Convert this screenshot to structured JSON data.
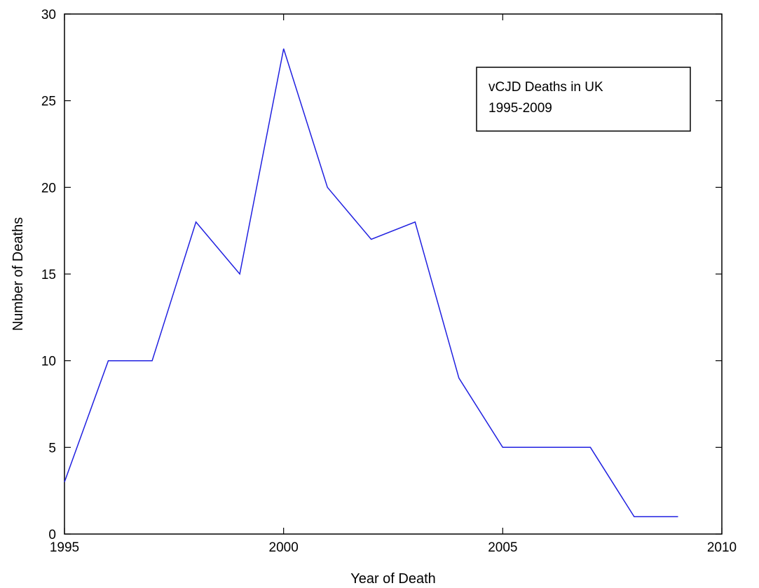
{
  "chart_data": {
    "type": "line",
    "title": "",
    "xlabel": "Year of Death",
    "ylabel": "Number of Deaths",
    "xlim": [
      1995,
      2010
    ],
    "ylim": [
      0,
      30
    ],
    "x_ticks": [
      "1995",
      "2000",
      "2005",
      "2010"
    ],
    "y_ticks": [
      "0",
      "5",
      "10",
      "15",
      "20",
      "25",
      "30"
    ],
    "grid": false,
    "legend_position": "top-right",
    "annotation": [
      "vCJD Deaths in UK",
      "1995-2009"
    ],
    "line_color": "#2020e0",
    "series": [
      {
        "x": [
          1995,
          1996,
          1997,
          1998,
          1999,
          2000,
          2001,
          2002,
          2003,
          2004,
          2005,
          2006,
          2007,
          2008,
          2009
        ],
        "values": [
          3,
          10,
          10,
          18,
          15,
          28,
          20,
          17,
          18,
          9,
          5,
          5,
          5,
          1,
          1
        ]
      }
    ]
  }
}
